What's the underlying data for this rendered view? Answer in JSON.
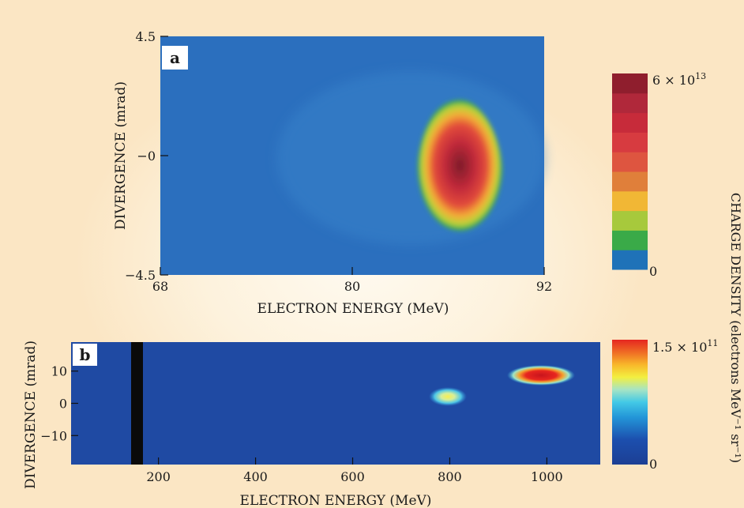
{
  "chart_data": [
    {
      "type": "heatmap",
      "panel_label": "a",
      "xlabel": "ELECTRON ENERGY (MeV)",
      "ylabel": "DIVERGENCE (mrad)",
      "xlim": [
        68,
        92
      ],
      "ylim": [
        -4.5,
        4.5
      ],
      "x_ticks": [
        "68",
        "80",
        "92"
      ],
      "y_ticks": [
        "4.5",
        "−0",
        "−4.5"
      ],
      "peak": {
        "energy_mev": 87.3,
        "divergence_mrad": 0.3
      },
      "colorbar": {
        "label": "CHARGE DENSITY (electrons MeV⁻¹ sr⁻¹)",
        "max_label": "6 × 10",
        "max_exp": "13",
        "min_label": "0",
        "colors": [
          "#1f72b8",
          "#3aaa48",
          "#a7c93c",
          "#f1b735",
          "#e07f3a",
          "#de5540",
          "#d73b40",
          "#c72b3a",
          "#b0283a",
          "#8f1e2d"
        ]
      }
    },
    {
      "type": "heatmap",
      "panel_label": "b",
      "xlabel": "ELECTRON ENERGY (MeV)",
      "ylabel": "DIVERGENCE (mrad)",
      "xlim": [
        20,
        1110
      ],
      "ylim": [
        -19,
        19
      ],
      "x_ticks": [
        200,
        400,
        600,
        800,
        1000
      ],
      "y_ticks": [
        10,
        0,
        -10
      ],
      "spots": [
        {
          "energy_mev": 790,
          "divergence_mrad": 2
        },
        {
          "energy_mev": 985,
          "divergence_mrad": 8
        }
      ],
      "colorbar": {
        "max_label": "1.5 × 10",
        "max_exp": "11",
        "min_label": "0",
        "colors": [
          "#1c3f94",
          "#1c5fbc",
          "#2396d8",
          "#43c9e6",
          "#a6e4c4",
          "#f3ef40",
          "#f8b72a",
          "#ef6b24",
          "#e52620"
        ]
      }
    }
  ]
}
